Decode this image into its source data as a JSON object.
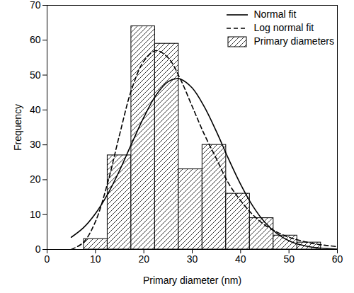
{
  "chart_data": {
    "type": "histogram",
    "x_label": "Primary diameter (nm)",
    "y_label": "Frequency",
    "xlim": [
      0,
      60
    ],
    "xticks": [
      0,
      10,
      20,
      30,
      40,
      50,
      60
    ],
    "ylim": [
      0,
      70
    ],
    "yticks": [
      0,
      10,
      20,
      30,
      40,
      50,
      60,
      70
    ],
    "legend": "top-right",
    "series": [
      {
        "name": "Normal fit",
        "type": "line",
        "line_style": "solid",
        "color": "#000000",
        "x": [
          5,
          7.5,
          10,
          12.5,
          15,
          17.5,
          20,
          22.5,
          25,
          26.8,
          27.5,
          30,
          32.5,
          35,
          37.5,
          40,
          42.5,
          45,
          47.5,
          50,
          52.5,
          55,
          57.5,
          60
        ],
        "values": [
          3.5,
          6.2,
          10.3,
          15.8,
          22.7,
          30.4,
          37.9,
          44.2,
          48.1,
          49,
          48.9,
          46.3,
          40.9,
          33.8,
          26,
          18.7,
          12.5,
          7.8,
          4.6,
          2.5,
          1.3,
          0.6,
          0.3,
          0.1
        ]
      },
      {
        "name": "Log normal fit",
        "type": "line",
        "line_style": "dashed",
        "color": "#000000",
        "x": [
          5,
          7.5,
          10,
          12.5,
          15,
          17.5,
          20,
          22.5,
          25,
          27.5,
          30,
          32.5,
          35,
          37.5,
          40,
          42.5,
          45,
          47.5,
          50,
          52.5,
          55,
          57.5,
          60
        ],
        "values": [
          0,
          2,
          8,
          19,
          33,
          46,
          54,
          57,
          55,
          49,
          41,
          33,
          26,
          19,
          14,
          10,
          7,
          5,
          3.5,
          2.5,
          1.7,
          1.2,
          0.8
        ]
      },
      {
        "name": "Primary diameters",
        "type": "bar",
        "color": "#000000",
        "bins": [
          7.6,
          12.5,
          17.4,
          22.3,
          27.2,
          32.1,
          37,
          41.9,
          46.8,
          51.7,
          56.6
        ],
        "values": [
          3,
          27,
          64,
          59,
          23,
          30,
          16,
          9,
          4,
          2
        ]
      }
    ]
  }
}
